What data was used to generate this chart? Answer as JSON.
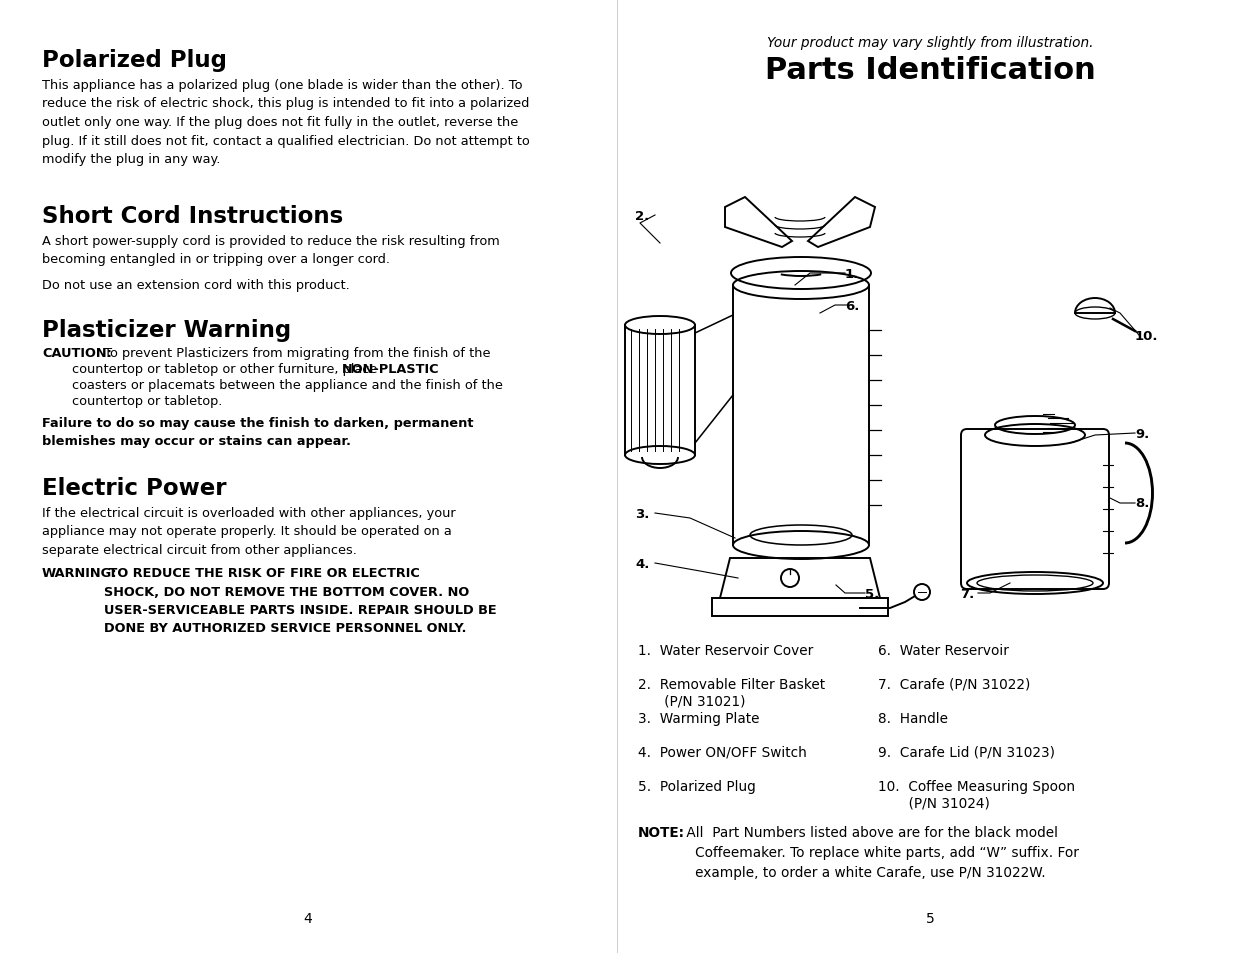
{
  "background_color": "#ffffff",
  "left_page": {
    "heading1": "Polarized Plug",
    "body1": "This appliance has a polarized plug (one blade is wider than the other). To\nreduce the risk of electric shock, this plug is intended to fit into a polarized\noutlet only one way. If the plug does not fit fully in the outlet, reverse the\nplug. If it still does not fit, contact a qualified electrician. Do not attempt to\nmodify the plug in any way.",
    "heading2": "Short Cord Instructions",
    "body2a": "A short power-supply cord is provided to reduce the risk resulting from\nbecoming entangled in or tripping over a longer cord.",
    "body2b": "Do not use an extension cord with this product.",
    "heading3": "Plasticizer Warning",
    "caution_bold": "CAUTION:",
    "caution_normal": " To prevent Plasticizers from migrating from the finish of the",
    "caution_indent1": "countertop or tabletop or other furniture, place ",
    "caution_noplastic": "NON-PLASTIC",
    "caution_indent2": "coasters or placemats between the appliance and the finish of the",
    "caution_indent3": "countertop or tabletop.",
    "caution_warning": "Failure to do so may cause the finish to darken, permanent\nblemishes may occur or stains can appear.",
    "heading4": "Electric Power",
    "body4": "If the electrical circuit is overloaded with other appliances, your\nappliance may not operate properly. It should be operated on a\nseparate electrical circuit from other appliances.",
    "warning_bold": "WARNING:",
    "warning_normal": " TO REDUCE THE RISK OF FIRE OR ELECTRIC\nSHOCK, DO NOT REMOVE THE BOTTOM COVER. NO\nUSER-SERVICEABLE PARTS INSIDE. REPAIR SHOULD BE\nDONE BY AUTHORIZED SERVICE PERSONNEL ONLY.",
    "page_num": "4"
  },
  "right_page": {
    "subtitle": "Your product may vary slightly from illustration.",
    "title": "Parts Identification",
    "col1": [
      "1.  Water Reservoir Cover",
      "2.  Removable Filter Basket\n      (P/N 31021)",
      "3.  Warming Plate",
      "4.  Power ON/OFF Switch",
      "5.  Polarized Plug"
    ],
    "col2": [
      "6.  Water Reservoir",
      "7.  Carafe (P/N 31022)",
      "8.  Handle",
      "9.  Carafe Lid (P/N 31023)",
      "10.  Coffee Measuring Spoon\n       (P/N 31024)"
    ],
    "note_bold": "NOTE:",
    "note_normal": " All  Part Numbers listed above are for the black model\n   Coffeemaker. To replace white parts, add “W” suffix. For\n   example, to order a white Carafe, use P/N 31022W.",
    "page_num": "5"
  }
}
